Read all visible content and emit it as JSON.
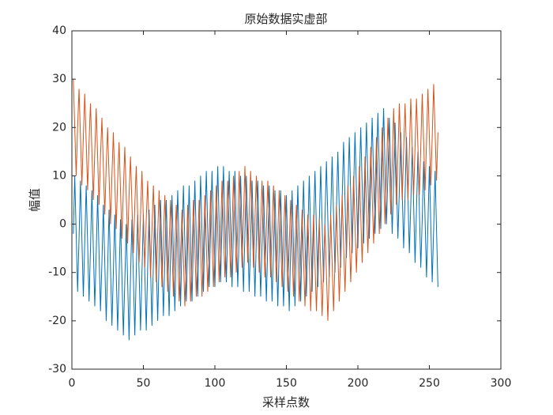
{
  "chart_data": {
    "type": "line",
    "title": "原始数据实虚部",
    "xlabel": "采样点数",
    "ylabel": "幅值",
    "xlim": [
      0,
      300
    ],
    "xticks": [
      0,
      50,
      100,
      150,
      200,
      250,
      300
    ],
    "ylim": [
      -30,
      40
    ],
    "yticks": [
      -30,
      -20,
      -10,
      0,
      10,
      20,
      30,
      40
    ],
    "grid": false,
    "x": [
      1,
      2,
      3,
      4,
      5,
      6,
      7,
      8,
      9,
      10,
      11,
      12,
      13,
      14,
      15,
      16,
      17,
      18,
      19,
      20,
      21,
      22,
      23,
      24,
      25,
      26,
      27,
      28,
      29,
      30,
      31,
      32,
      33,
      34,
      35,
      36,
      37,
      38,
      39,
      40,
      41,
      42,
      43,
      44,
      45,
      46,
      47,
      48,
      49,
      50,
      51,
      52,
      53,
      54,
      55,
      56,
      57,
      58,
      59,
      60,
      61,
      62,
      63,
      64,
      65,
      66,
      67,
      68,
      69,
      70,
      71,
      72,
      73,
      74,
      75,
      76,
      77,
      78,
      79,
      80,
      81,
      82,
      83,
      84,
      85,
      86,
      87,
      88,
      89,
      90,
      91,
      92,
      93,
      94,
      95,
      96,
      97,
      98,
      99,
      100,
      101,
      102,
      103,
      104,
      105,
      106,
      107,
      108,
      109,
      110,
      111,
      112,
      113,
      114,
      115,
      116,
      117,
      118,
      119,
      120,
      121,
      122,
      123,
      124,
      125,
      126,
      127,
      128,
      129,
      130,
      131,
      132,
      133,
      134,
      135,
      136,
      137,
      138,
      139,
      140,
      141,
      142,
      143,
      144,
      145,
      146,
      147,
      148,
      149,
      150,
      151,
      152,
      153,
      154,
      155,
      156,
      157,
      158,
      159,
      160,
      161,
      162,
      163,
      164,
      165,
      166,
      167,
      168,
      169,
      170,
      171,
      172,
      173,
      174,
      175,
      176,
      177,
      178,
      179,
      180,
      181,
      182,
      183,
      184,
      185,
      186,
      187,
      188,
      189,
      190,
      191,
      192,
      193,
      194,
      195,
      196,
      197,
      198,
      199,
      200,
      201,
      202,
      203,
      204,
      205,
      206,
      207,
      208,
      209,
      210,
      211,
      212,
      213,
      214,
      215,
      216,
      217,
      218,
      219,
      220,
      221,
      222,
      223,
      224,
      225,
      226,
      227,
      228,
      229,
      230,
      231,
      232,
      233,
      234,
      235,
      236,
      237,
      238,
      239,
      240,
      241,
      242,
      243,
      244,
      245,
      246,
      247,
      248,
      249,
      250,
      251,
      252,
      253,
      254,
      255,
      256
    ],
    "series": [
      {
        "color": "#0072BD",
        "values": [
          -2,
          10,
          -2,
          -14,
          -3,
          9,
          -3,
          -15,
          -4,
          8,
          -4,
          -16,
          -5,
          7,
          -5,
          -17,
          -6,
          6,
          -6,
          -18,
          -8,
          4,
          -8,
          -20,
          -9,
          3,
          -9,
          -21,
          -10,
          2,
          -10,
          -22,
          -11,
          1,
          -11,
          -23,
          -12,
          0,
          -12,
          -24,
          -11,
          1,
          -11,
          -23,
          -10,
          2,
          -10,
          -22,
          -10,
          2,
          -10,
          -22,
          -9,
          3,
          -9,
          -21,
          -8,
          4,
          -8,
          -20,
          -7,
          5,
          -7,
          -19,
          -7,
          5,
          -7,
          -19,
          -6,
          6,
          -6,
          -18,
          -5,
          7,
          -5,
          -17,
          -4,
          8,
          -4,
          -16,
          -4,
          8,
          -4,
          -16,
          -3,
          9,
          -3,
          -15,
          -2,
          10,
          -2,
          -14,
          -1,
          11,
          -1,
          -13,
          -1,
          11,
          -1,
          -13,
          0,
          12,
          0,
          -12,
          0,
          12,
          0,
          -12,
          -1,
          11,
          -1,
          -13,
          -1,
          11,
          -1,
          -13,
          -2,
          10,
          -2,
          -14,
          -2,
          10,
          -2,
          -14,
          -3,
          9,
          -3,
          -15,
          -3,
          9,
          -3,
          -15,
          -4,
          8,
          -4,
          -16,
          -4,
          8,
          -4,
          -16,
          -5,
          7,
          -5,
          -17,
          -5,
          7,
          -5,
          -17,
          -6,
          6,
          -6,
          -18,
          -5,
          7,
          -5,
          -17,
          -4,
          8,
          -4,
          -16,
          -3,
          9,
          -3,
          -15,
          -2,
          10,
          -2,
          -14,
          -1,
          11,
          -1,
          -13,
          0,
          12,
          0,
          -12,
          1,
          13,
          1,
          -11,
          2,
          14,
          2,
          -10,
          3,
          15,
          3,
          -9,
          5,
          17,
          5,
          -7,
          6,
          18,
          6,
          -6,
          7,
          19,
          7,
          -5,
          8,
          20,
          8,
          -4,
          9,
          21,
          9,
          -3,
          10,
          22,
          10,
          -2,
          11,
          23,
          11,
          -1,
          12,
          24,
          12,
          0,
          10,
          22,
          10,
          -2,
          9,
          21,
          9,
          -3,
          7,
          19,
          7,
          -5,
          6,
          18,
          6,
          -6,
          4,
          16,
          4,
          -8,
          3,
          15,
          3,
          -9,
          1,
          13,
          1,
          -11,
          0,
          12,
          0,
          -12,
          -1,
          11,
          -1,
          -13
        ]
      },
      {
        "color": "#D95319",
        "values": [
          30,
          20,
          10,
          20,
          28,
          18,
          8,
          18,
          27,
          17,
          7,
          17,
          25,
          15,
          5,
          15,
          24,
          14,
          4,
          14,
          22,
          12,
          2,
          12,
          20,
          10,
          0,
          10,
          19,
          9,
          -1,
          9,
          17,
          7,
          -3,
          7,
          16,
          6,
          -4,
          6,
          14,
          4,
          -6,
          4,
          12,
          2,
          -8,
          2,
          11,
          1,
          -9,
          1,
          9,
          -1,
          -11,
          -1,
          8,
          -2,
          -12,
          -2,
          7,
          -3,
          -13,
          -3,
          6,
          -4,
          -14,
          -4,
          5,
          -5,
          -15,
          -5,
          4,
          -6,
          -16,
          -6,
          3,
          -7,
          -17,
          -7,
          4,
          -6,
          -16,
          -6,
          5,
          -5,
          -15,
          -5,
          5,
          -5,
          -15,
          -5,
          6,
          -4,
          -14,
          -4,
          7,
          -3,
          -13,
          -3,
          8,
          -2,
          -12,
          -2,
          9,
          -1,
          -11,
          -1,
          9,
          -1,
          -11,
          -1,
          10,
          0,
          -10,
          0,
          11,
          1,
          -9,
          1,
          12,
          2,
          -8,
          2,
          11,
          1,
          -9,
          1,
          10,
          0,
          -10,
          0,
          9,
          -1,
          -11,
          -1,
          9,
          -1,
          -11,
          -1,
          8,
          -2,
          -12,
          -2,
          7,
          -3,
          -13,
          -3,
          6,
          -4,
          -14,
          -4,
          5,
          -5,
          -15,
          -5,
          4,
          -6,
          -16,
          -6,
          3,
          -7,
          -17,
          -7,
          2,
          -8,
          -18,
          -8,
          2,
          -8,
          -18,
          -8,
          1,
          -9,
          -19,
          -9,
          0,
          -10,
          -20,
          -10,
          2,
          -8,
          -18,
          -8,
          4,
          -6,
          -16,
          -6,
          6,
          -4,
          -14,
          -4,
          8,
          -2,
          -12,
          -2,
          10,
          0,
          -10,
          0,
          12,
          2,
          -8,
          2,
          14,
          4,
          -6,
          4,
          16,
          6,
          -4,
          6,
          18,
          8,
          -2,
          8,
          20,
          10,
          0,
          10,
          22,
          12,
          2,
          12,
          24,
          14,
          4,
          14,
          25,
          15,
          5,
          15,
          25,
          15,
          5,
          15,
          26,
          16,
          6,
          16,
          26,
          16,
          6,
          16,
          27,
          17,
          7,
          17,
          28,
          18,
          8,
          18,
          29,
          19,
          9,
          19
        ]
      }
    ]
  }
}
